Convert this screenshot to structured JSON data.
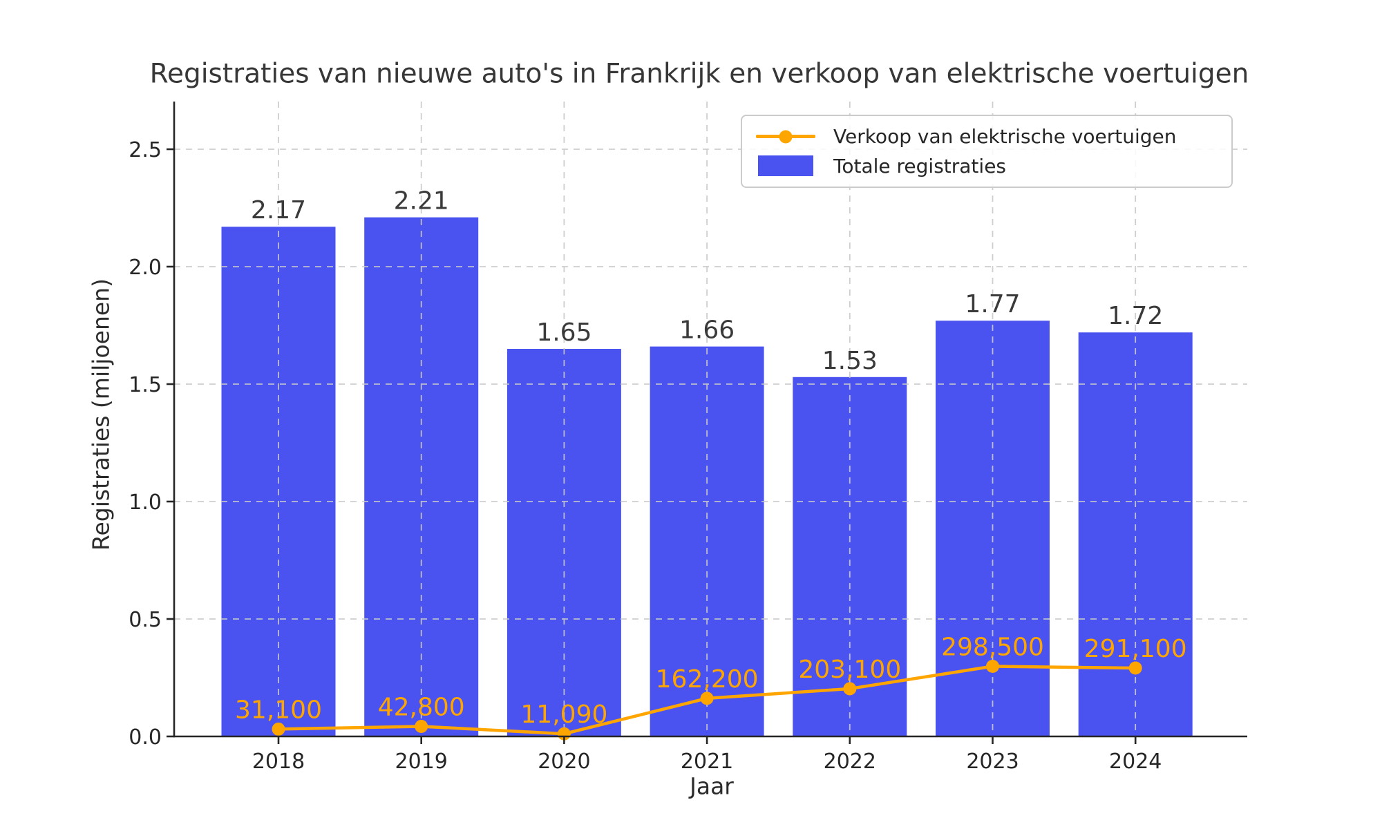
{
  "chart_data": {
    "type": "bar",
    "title": "Registraties van nieuwe auto's in Frankrijk en verkoop van elektrische voertuigen",
    "xlabel": "Jaar",
    "ylabel": "Registraties (miljoenen)",
    "categories": [
      "2018",
      "2019",
      "2020",
      "2021",
      "2022",
      "2023",
      "2024"
    ],
    "series": [
      {
        "name": "Totale registraties",
        "type": "bar",
        "unit": "miljoenen",
        "color": "#4a53f0",
        "values": [
          2.17,
          2.21,
          1.65,
          1.66,
          1.53,
          1.77,
          1.72
        ],
        "value_labels": [
          "2.17",
          "2.21",
          "1.65",
          "1.66",
          "1.53",
          "1.77",
          "1.72"
        ]
      },
      {
        "name": "Verkoop van elektrische voertuigen",
        "type": "line",
        "unit": "voertuigen",
        "color": "#ffa500",
        "values": [
          31100,
          42800,
          11090,
          162200,
          203100,
          298500,
          291100
        ],
        "value_labels": [
          "31,100",
          "42,800",
          "11,090",
          "162,200",
          "203,100",
          "298,500",
          "291,100"
        ]
      }
    ],
    "yticks": [
      0,
      0.5,
      1.0,
      1.5,
      2.0,
      2.5
    ],
    "ytick_labels": [
      "0.0",
      "0.5",
      "1.0",
      "1.5",
      "2.0",
      "2.5"
    ],
    "ylim": [
      0,
      2.7
    ],
    "grid": true,
    "grid_style": "dashed",
    "legend_position": "upper right",
    "colors": {
      "grid": "#c9c9c9",
      "spine": "#262626",
      "tick_text": "#262626",
      "bar_value_text": "#3a3a3a",
      "background": "#ffffff"
    }
  }
}
